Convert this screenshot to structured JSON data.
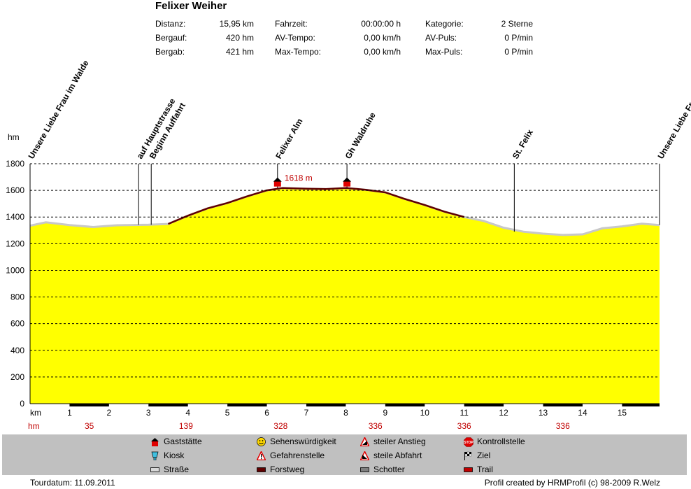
{
  "header": {
    "title": "Felixer Weiher",
    "stats": [
      {
        "label": "Distanz:",
        "value": "15,95 km"
      },
      {
        "label": "Bergauf:",
        "value": "420 hm"
      },
      {
        "label": "Bergab:",
        "value": "421 hm"
      },
      {
        "label": "Fahrzeit:",
        "value": "00:00:00 h"
      },
      {
        "label": "AV-Tempo:",
        "value": "0,00 km/h"
      },
      {
        "label": "Max-Tempo:",
        "value": "0,00 km/h"
      },
      {
        "label": "Kategorie:",
        "value": "2 Sterne"
      },
      {
        "label": "AV-Puls:",
        "value": "0 P/min"
      },
      {
        "label": "Max-Puls:",
        "value": "0 P/min"
      }
    ]
  },
  "chart_data": {
    "type": "area",
    "ylabel": "hm",
    "xlabel": "km",
    "ylim": [
      0,
      1800
    ],
    "yticks": [
      "0",
      "200",
      "400",
      "600",
      "800",
      "1000",
      "1200",
      "1400",
      "1600",
      "1800"
    ],
    "xlim": [
      0,
      15.95
    ],
    "xticks": [
      "1",
      "2",
      "3",
      "4",
      "5",
      "6",
      "7",
      "8",
      "9",
      "10",
      "11",
      "12",
      "13",
      "14",
      "15"
    ],
    "grid": true,
    "fill_color": "#ffff00",
    "line_color": "#c8c8c8",
    "profile": [
      {
        "x": 0.0,
        "y": 1335
      },
      {
        "x": 0.4,
        "y": 1360
      },
      {
        "x": 1.0,
        "y": 1340
      },
      {
        "x": 1.6,
        "y": 1325
      },
      {
        "x": 2.2,
        "y": 1338
      },
      {
        "x": 3.0,
        "y": 1342
      },
      {
        "x": 3.5,
        "y": 1348
      },
      {
        "x": 4.0,
        "y": 1410
      },
      {
        "x": 4.5,
        "y": 1465
      },
      {
        "x": 5.0,
        "y": 1505
      },
      {
        "x": 5.5,
        "y": 1555
      },
      {
        "x": 6.0,
        "y": 1600
      },
      {
        "x": 6.4,
        "y": 1618
      },
      {
        "x": 7.0,
        "y": 1612
      },
      {
        "x": 7.5,
        "y": 1610
      },
      {
        "x": 8.0,
        "y": 1618
      },
      {
        "x": 8.5,
        "y": 1605
      },
      {
        "x": 9.0,
        "y": 1585
      },
      {
        "x": 9.5,
        "y": 1535
      },
      {
        "x": 10.0,
        "y": 1490
      },
      {
        "x": 10.5,
        "y": 1440
      },
      {
        "x": 11.0,
        "y": 1400
      },
      {
        "x": 11.5,
        "y": 1370
      },
      {
        "x": 12.0,
        "y": 1320
      },
      {
        "x": 12.5,
        "y": 1290
      },
      {
        "x": 13.0,
        "y": 1275
      },
      {
        "x": 13.5,
        "y": 1265
      },
      {
        "x": 14.0,
        "y": 1270
      },
      {
        "x": 14.5,
        "y": 1315
      },
      {
        "x": 15.0,
        "y": 1330
      },
      {
        "x": 15.5,
        "y": 1350
      },
      {
        "x": 15.95,
        "y": 1340
      }
    ],
    "trail_segments": [
      [
        3.5,
        11.0
      ]
    ],
    "waypoints": [
      {
        "label": "Unsere Liebe Frau im Walde",
        "km": 0.0
      },
      {
        "label": "auf Hauptstrasse",
        "km": 2.75
      },
      {
        "label": "Beginn Auffahrt",
        "km": 3.07
      },
      {
        "label": "Felixer Alm",
        "km": 6.27
      },
      {
        "label": "Gh Waldruhe",
        "km": 8.03
      },
      {
        "label": "St. Felix",
        "km": 12.27
      },
      {
        "label": "Unsere Liebe Frau im Walde",
        "km": 15.95
      }
    ],
    "annotations": [
      {
        "text": "1618 m",
        "km": 6.27,
        "hm": 1618
      }
    ],
    "huts": [
      {
        "km": 6.27,
        "hm": 1618
      },
      {
        "km": 8.03,
        "hm": 1618
      }
    ],
    "km_bar": [
      {
        "from": 1.0,
        "to": 2.0
      },
      {
        "from": 3.0,
        "to": 4.0
      },
      {
        "from": 5.0,
        "to": 6.0
      },
      {
        "from": 7.0,
        "to": 8.0
      },
      {
        "from": 9.0,
        "to": 10.0
      },
      {
        "from": 11.0,
        "to": 12.0
      },
      {
        "from": 13.0,
        "to": 14.0
      },
      {
        "from": 15.0,
        "to": 15.95
      }
    ],
    "hm_row_label": "hm",
    "hm_values": [
      {
        "km": 1.5,
        "text": "35"
      },
      {
        "km": 3.95,
        "text": "139"
      },
      {
        "km": 6.35,
        "text": "328"
      },
      {
        "km": 8.75,
        "text": "336"
      },
      {
        "km": 11.0,
        "text": "336"
      },
      {
        "km": 13.5,
        "text": "336"
      }
    ]
  },
  "legend": {
    "background": "#c0c0c0",
    "items": [
      {
        "label": "Gaststätte",
        "icon": "hut-icon",
        "color": "#e00000"
      },
      {
        "label": "Kiosk",
        "icon": "kiosk-icon",
        "color": "#40c0e0"
      },
      {
        "label": "Straße",
        "icon": "road-swatch",
        "color": "#d8d8d8"
      },
      {
        "label": "Sehenswürdigkeit",
        "icon": "smiley-icon",
        "color": "#ffd800"
      },
      {
        "label": "Gefahrenstelle",
        "icon": "warning-icon",
        "color": "#e00000"
      },
      {
        "label": "Forstweg",
        "icon": "forest-road-swatch",
        "color": "#600000"
      },
      {
        "label": "steiler Anstieg",
        "icon": "steep-climb-icon",
        "color": "#e00000"
      },
      {
        "label": "steile Abfahrt",
        "icon": "steep-descent-icon",
        "color": "#e00000"
      },
      {
        "label": "Schotter",
        "icon": "gravel-swatch",
        "color": "#808080"
      },
      {
        "label": "Kontrollstelle",
        "icon": "stop-icon",
        "color": "#e00000"
      },
      {
        "label": "Ziel",
        "icon": "finish-flag-icon",
        "color": "#000000"
      },
      {
        "label": "Trail",
        "icon": "trail-swatch",
        "color": "#c00000"
      }
    ]
  },
  "footer": {
    "date": "Tourdatum: 11.09.2011",
    "credit": "Profil created by HRMProfil (c) 98-2009 R.Welz"
  }
}
